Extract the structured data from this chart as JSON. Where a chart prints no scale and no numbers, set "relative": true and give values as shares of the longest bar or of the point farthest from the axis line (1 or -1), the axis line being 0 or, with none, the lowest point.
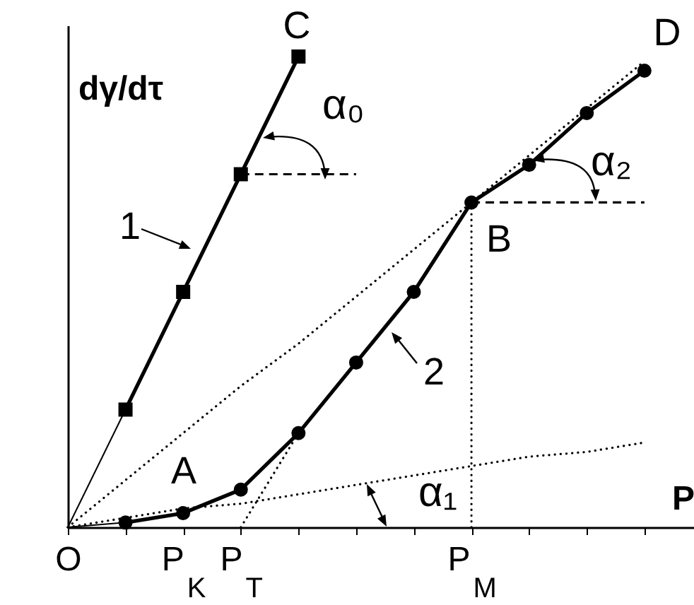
{
  "chart_data": {
    "type": "line",
    "relative": true,
    "xlabel": "P",
    "ylabel": "dγ/dτ",
    "categories": [
      "O",
      null,
      "P$_{K}$",
      "P$_{T}$",
      null,
      null,
      null,
      "P$_{M}$",
      null,
      null,
      null
    ],
    "series": [
      {
        "name": "1",
        "color": "#000000",
        "marker": "square",
        "values": [
          null,
          0.25,
          0.5,
          0.75,
          1.0,
          null,
          null,
          null,
          null,
          null,
          null
        ]
      },
      {
        "name": "2",
        "color": "#000000",
        "marker": "circle",
        "values": [
          null,
          0.01,
          0.03,
          0.08,
          0.2,
          0.35,
          0.5,
          0.69,
          0.77,
          0.88,
          0.97
        ]
      },
      {
        "color": "#000000",
        "marker": "none",
        "values": [
          0,
          0.25,
          null,
          null,
          null,
          null,
          null,
          null,
          null,
          null,
          null
        ]
      },
      {
        "color": "#000000",
        "marker": "none",
        "values": [
          0,
          0.01,
          null,
          null,
          null,
          null,
          null,
          null,
          null,
          null,
          null
        ]
      },
      {
        "color": "#000000",
        "marker": "none",
        "line_style": "dotted",
        "values": [
          0,
          0.1,
          0.2,
          0.3,
          0.39,
          0.49,
          0.59,
          0.69,
          0.79,
          0.89,
          0.99
        ]
      },
      {
        "color": "#000000",
        "marker": "none",
        "line_style": "dotted",
        "values": [
          0,
          0.02,
          0.04,
          0.05,
          0.07,
          0.09,
          0.11,
          0.13,
          0.15,
          0.16,
          0.18
        ]
      },
      {
        "color": "#000000",
        "marker": "none",
        "line_style": "dotted",
        "values": [
          null,
          null,
          null,
          0,
          0.2,
          null,
          null,
          null,
          null,
          null,
          null
        ]
      },
      {
        "color": "#000000",
        "marker": "none",
        "line_style": "dotted",
        "x": [
          "P$_{M}$",
          "P$_{M}$"
        ],
        "values": [
          0,
          0.69
        ]
      },
      {
        "color": "#000000",
        "marker": "none",
        "line_style": "dashed",
        "values": [
          null,
          null,
          null,
          0.75,
          0.75,
          0.75,
          null,
          null,
          null,
          null,
          null
        ]
      },
      {
        "color": "#000000",
        "marker": "none",
        "line_style": "dashed",
        "values": [
          null,
          null,
          null,
          null,
          null,
          null,
          null,
          0.69,
          0.69,
          0.69,
          0.69
        ]
      }
    ],
    "annotations": [
      "C",
      "D",
      "B",
      "A",
      "α₀",
      "α₁",
      "α₂"
    ]
  }
}
